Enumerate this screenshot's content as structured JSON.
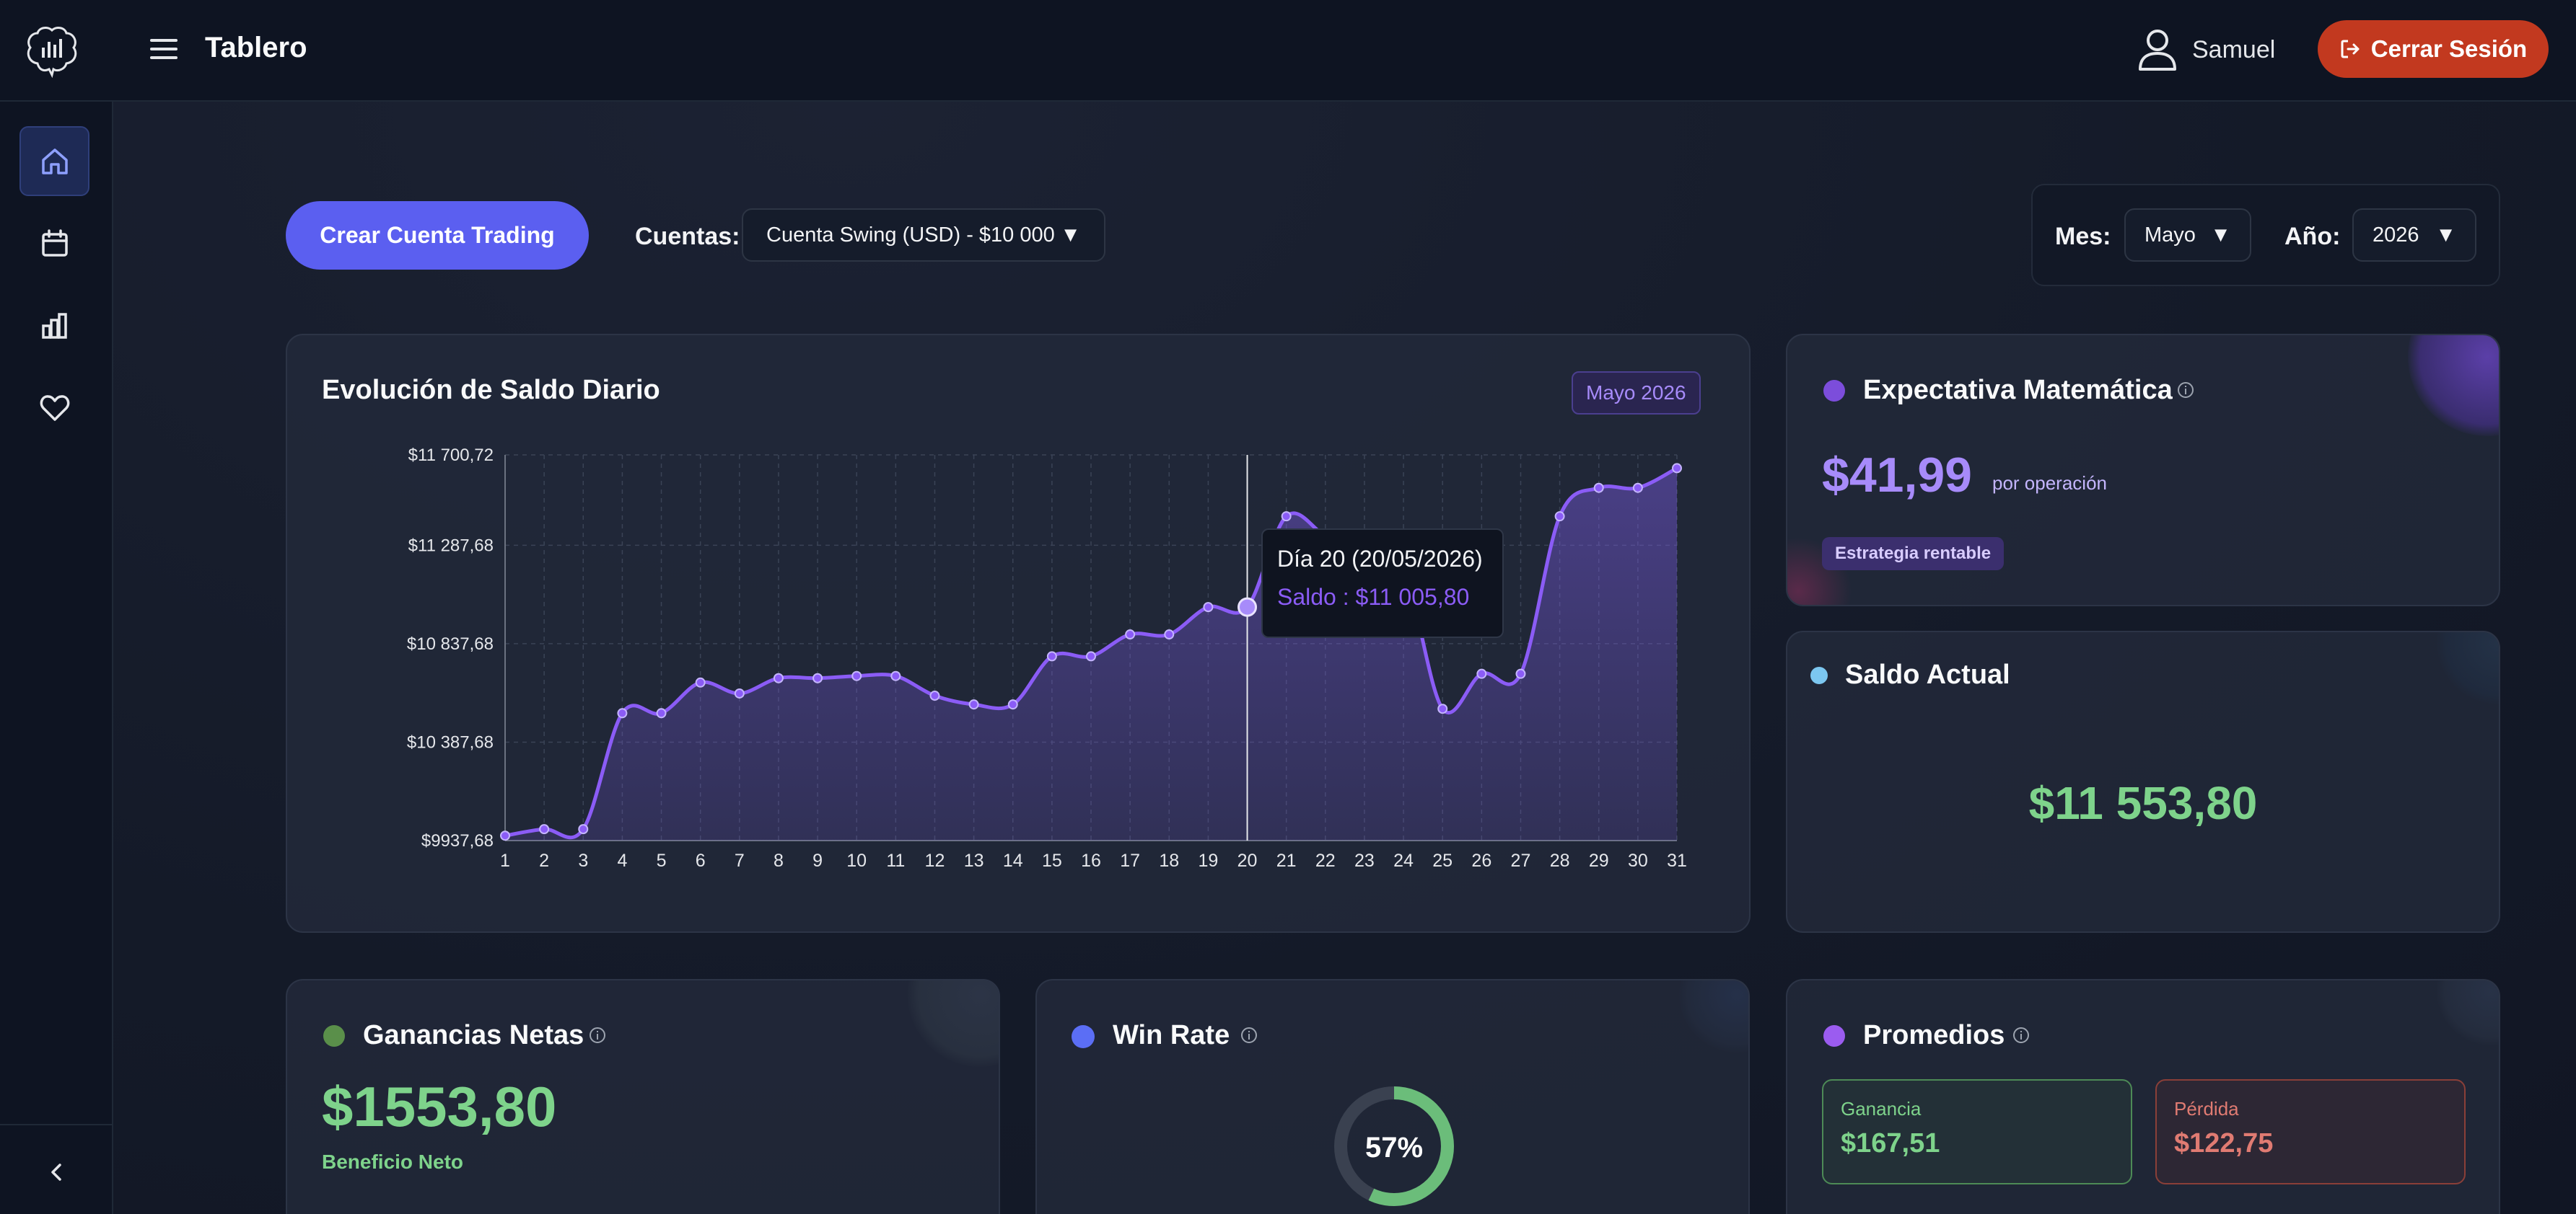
{
  "header": {
    "title": "Tablero",
    "user_name": "Samuel",
    "logout_label": "Cerrar Sesión"
  },
  "sidebar": {
    "items": [
      {
        "icon": "home-icon"
      },
      {
        "icon": "calendar-icon"
      },
      {
        "icon": "bar-chart-icon"
      },
      {
        "icon": "heart-icon"
      }
    ],
    "collapse_icon": "chevron-left-icon"
  },
  "toolbar": {
    "create_label": "Crear Cuenta Trading",
    "accounts_label": "Cuentas:",
    "account_selected": "Cuenta Swing (USD) - $10 000",
    "month_label": "Mes:",
    "month_selected": "Mayo",
    "year_label": "Año:",
    "year_selected": "2026"
  },
  "balance_card": {
    "title": "Evolución de Saldo Diario",
    "badge": "Mayo 2026",
    "tooltip_title": "Día 20 (20/05/2026)",
    "tooltip_value": "Saldo : $11 005,80"
  },
  "chart_data": {
    "type": "area",
    "x": [
      1,
      2,
      3,
      4,
      5,
      6,
      7,
      8,
      9,
      10,
      11,
      12,
      13,
      14,
      15,
      16,
      17,
      18,
      19,
      20,
      21,
      22,
      23,
      24,
      25,
      26,
      27,
      28,
      29,
      30,
      31
    ],
    "series": [
      {
        "values": [
          9960,
          9990,
          9990,
          10520,
          10520,
          10660,
          10610,
          10680,
          10680,
          10690,
          10690,
          10600,
          10560,
          10560,
          10780,
          10780,
          10880,
          10880,
          11005,
          11005,
          11420,
          11330,
          11240,
          11180,
          10540,
          10700,
          10700,
          11420,
          11550,
          11550,
          11640
        ]
      }
    ],
    "ytick_labels": [
      "$11 700,72",
      "$11 287,68",
      "$10 837,68",
      "$10 387,68",
      "$9937,68"
    ],
    "ytick_values": [
      11700.72,
      11287.68,
      10837.68,
      10387.68,
      9937.68
    ],
    "ylim": [
      9937.68,
      11700.72
    ],
    "grid": true,
    "highlight_x": 20,
    "color": "#8b5cf6"
  },
  "expectancy_card": {
    "title": "Expectativa Matemática",
    "value": "$41,99",
    "unit": "por operación",
    "badge": "Estrategia rentable"
  },
  "current_balance_card": {
    "title": "Saldo Actual",
    "value": "$11 553,80"
  },
  "net_profit_card": {
    "title": "Ganancias Netas",
    "value": "$1553,80",
    "caption": "Beneficio Neto"
  },
  "win_rate_card": {
    "title": "Win Rate",
    "percent": 57,
    "percent_label": "57%"
  },
  "averages_card": {
    "title": "Promedios",
    "gain_label": "Ganancia",
    "gain_value": "$167,51",
    "loss_label": "Pérdida",
    "loss_value": "$122,75"
  },
  "colors": {
    "accent": "#8b5cf6",
    "primary_button": "#5b5ff0",
    "logout": "#c2391f",
    "positive": "#7ed38b",
    "negative": "#e07b72"
  }
}
